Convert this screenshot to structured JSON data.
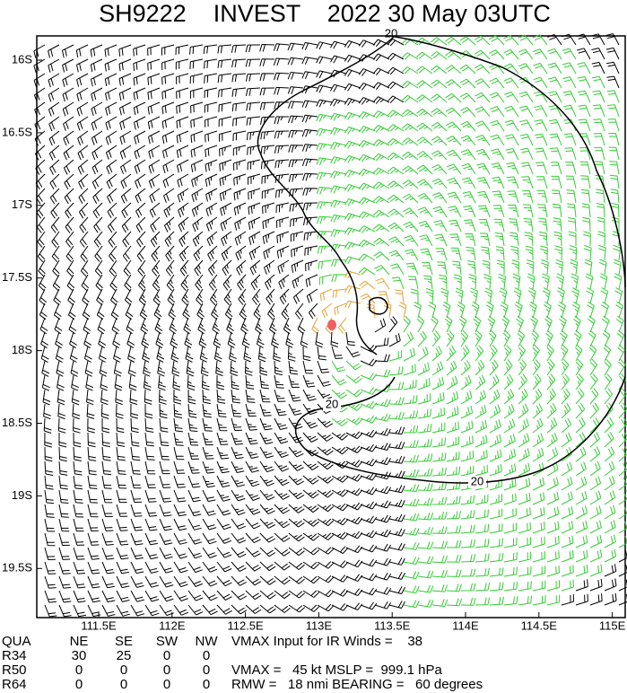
{
  "header": {
    "title": "SH9222    INVEST    2022 30 May 03UTC"
  },
  "map": {
    "x_labels": [
      "111.5E",
      "112E",
      "112.5E",
      "113E",
      "113.5E",
      "114E",
      "114.5E",
      "115E"
    ],
    "y_labels": [
      "16S",
      "16.5S",
      "17S",
      "17.5S",
      "18S",
      "18.5S",
      "19S",
      "19.5S"
    ],
    "contour_labels": [
      "20",
      "20",
      "20"
    ]
  },
  "table": {
    "rows": [
      [
        "QUA",
        "NE",
        "SE",
        "SW",
        "NW"
      ],
      [
        "R34",
        "30",
        "25",
        "0",
        "0"
      ],
      [
        "R50",
        "0",
        "0",
        "0",
        "0"
      ],
      [
        "R64",
        "0",
        "0",
        "0",
        "0"
      ]
    ],
    "notes": [
      "VMAX Input for IR Winds =    38",
      "VMAX =   45 kt MSLP =  999.1 hPa",
      "RMW =   18 nmi BEARING =   60 degrees"
    ]
  }
}
